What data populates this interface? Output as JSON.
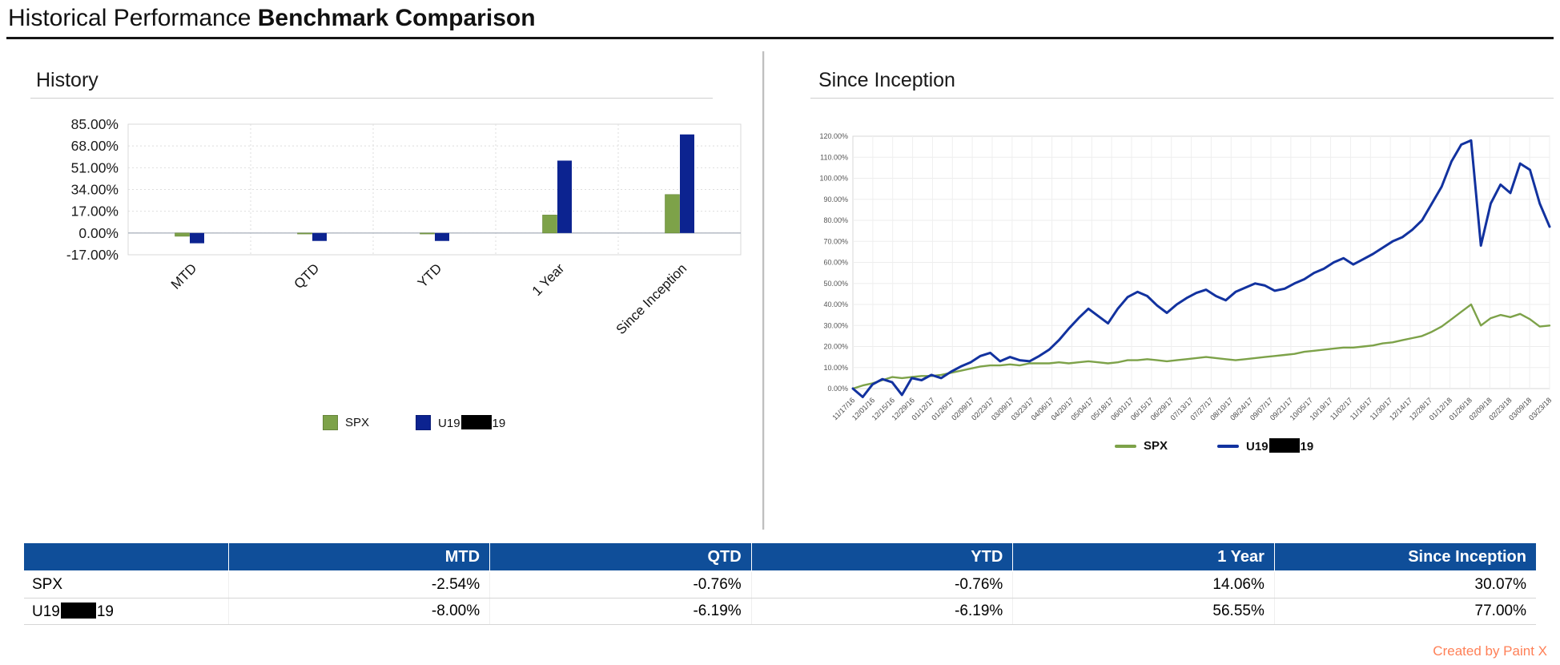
{
  "page": {
    "title_regular": "Historical Performance ",
    "title_bold": "Benchmark Comparison",
    "watermark": "Created by Paint X"
  },
  "entity": {
    "name_prefix": "U19",
    "name_suffix": "19",
    "redacted": true
  },
  "colors": {
    "spx_green": "#7DA249",
    "benchmark_bar_blue": "#0C2390",
    "benchmark_line_blue": "#12329F",
    "table_header_bg": "#0F4E99",
    "watermark_orange": "#FF8057"
  },
  "history_panel": {
    "heading": "History",
    "legend_spx": "SPX"
  },
  "inception_panel": {
    "heading": "Since Inception",
    "legend_spx": "SPX"
  },
  "chart_data": [
    {
      "type": "bar",
      "title": "History",
      "categories": [
        "MTD",
        "QTD",
        "YTD",
        "1 Year",
        "Since Inception"
      ],
      "series": [
        {
          "name": "SPX",
          "color": "#7DA249",
          "values": [
            -2.54,
            -0.76,
            -0.76,
            14.06,
            30.07
          ]
        },
        {
          "name": "U19[REDACTED]19",
          "color": "#0C2390",
          "values": [
            -8.0,
            -6.19,
            -6.19,
            56.55,
            77.0
          ]
        }
      ],
      "xlabel": "",
      "ylabel": "",
      "ylim": [
        -17,
        85
      ],
      "ytick_values": [
        85,
        68,
        51,
        34,
        17,
        0,
        -17
      ],
      "ytick_labels": [
        "85.00%",
        "68.00%",
        "51.00%",
        "34.00%",
        "17.00%",
        "0.00%",
        "-17.00%"
      ],
      "grid": true,
      "legend_position": "bottom"
    },
    {
      "type": "line",
      "title": "Since Inception",
      "x_labels": [
        "11/17/16",
        "12/01/16",
        "12/15/16",
        "12/29/16",
        "01/12/17",
        "01/26/17",
        "02/09/17",
        "02/23/17",
        "03/09/17",
        "03/23/17",
        "04/06/17",
        "04/20/17",
        "05/04/17",
        "05/18/17",
        "06/01/17",
        "06/15/17",
        "06/29/17",
        "07/13/17",
        "07/27/17",
        "08/10/17",
        "08/24/17",
        "09/07/17",
        "09/21/17",
        "10/05/17",
        "10/19/17",
        "11/02/17",
        "11/16/17",
        "11/30/17",
        "12/14/17",
        "12/28/17",
        "01/12/18",
        "01/26/18",
        "02/09/18",
        "02/23/18",
        "03/09/18",
        "03/23/18"
      ],
      "ylim": [
        0,
        120
      ],
      "ytick_values": [
        120,
        110,
        100,
        90,
        80,
        70,
        60,
        50,
        40,
        30,
        20,
        10,
        0
      ],
      "ytick_labels": [
        "120.00%",
        "110.00%",
        "100.00%",
        "90.00%",
        "80.00%",
        "70.00%",
        "60.00%",
        "50.00%",
        "40.00%",
        "30.00%",
        "20.00%",
        "10.00%",
        "0.00%"
      ],
      "series": [
        {
          "name": "SPX",
          "color": "#7DA249",
          "values": [
            0.0,
            1.5,
            2.5,
            4.0,
            5.5,
            5.0,
            5.5,
            6.0,
            6.0,
            6.5,
            7.5,
            8.5,
            9.5,
            10.5,
            11.0,
            11.0,
            11.5,
            11.0,
            12.0,
            12.0,
            12.0,
            12.5,
            12.0,
            12.5,
            13.0,
            12.5,
            12.0,
            12.5,
            13.5,
            13.5,
            14.0,
            13.5,
            13.0,
            13.5,
            14.0,
            14.5,
            15.0,
            14.5,
            14.0,
            13.5,
            14.0,
            14.5,
            15.0,
            15.5,
            16.0,
            16.5,
            17.5,
            18.0,
            18.5,
            19.0,
            19.5,
            19.5,
            20.0,
            20.5,
            21.5,
            22.0,
            23.0,
            24.0,
            25.0,
            27.0,
            29.5,
            33.0,
            36.5,
            40.0,
            30.0,
            33.5,
            35.0,
            34.0,
            35.5,
            33.0,
            29.5,
            30.0
          ]
        },
        {
          "name": "U19[REDACTED]19",
          "color": "#12329F",
          "values": [
            0.0,
            -4.0,
            2.0,
            4.5,
            3.0,
            -3.0,
            5.0,
            4.0,
            6.5,
            5.0,
            8.0,
            10.5,
            12.5,
            15.5,
            17.0,
            13.0,
            15.0,
            13.5,
            13.0,
            15.5,
            18.5,
            23.0,
            28.5,
            33.5,
            38.0,
            34.5,
            31.0,
            38.0,
            43.5,
            46.0,
            44.0,
            39.5,
            36.0,
            40.0,
            43.0,
            45.5,
            47.0,
            44.0,
            42.0,
            46.0,
            48.0,
            50.0,
            49.0,
            46.5,
            47.5,
            50.0,
            52.0,
            55.0,
            57.0,
            60.0,
            62.0,
            59.0,
            61.5,
            64.0,
            67.0,
            70.0,
            72.0,
            75.5,
            80.0,
            88.0,
            96.0,
            108.0,
            116.0,
            118.0,
            68.0,
            88.0,
            97.0,
            93.0,
            107.0,
            104.0,
            88.0,
            77.0
          ]
        }
      ],
      "grid": true,
      "legend_position": "bottom"
    }
  ],
  "table": {
    "columns": [
      "",
      "MTD",
      "QTD",
      "YTD",
      "1 Year",
      "Since Inception"
    ],
    "rows": [
      {
        "name": "SPX",
        "values": [
          "-2.54%",
          "-0.76%",
          "-0.76%",
          "14.06%",
          "30.07%"
        ]
      },
      {
        "name_prefix": "U19",
        "name_suffix": "19",
        "values": [
          "-8.00%",
          "-6.19%",
          "-6.19%",
          "56.55%",
          "77.00%"
        ]
      }
    ]
  }
}
